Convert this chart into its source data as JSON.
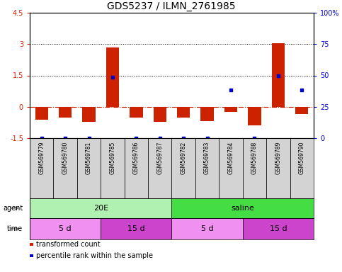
{
  "title": "GDS5237 / ILMN_2761985",
  "samples": [
    "GSM569779",
    "GSM569780",
    "GSM569781",
    "GSM569785",
    "GSM569786",
    "GSM569787",
    "GSM569782",
    "GSM569783",
    "GSM569784",
    "GSM569788",
    "GSM569789",
    "GSM569790"
  ],
  "bar_values": [
    -0.62,
    -0.5,
    -0.72,
    2.85,
    -0.5,
    -0.72,
    -0.5,
    -0.7,
    -0.25,
    -0.9,
    3.05,
    -0.35
  ],
  "percentile_values": [
    -1.5,
    -1.5,
    -1.5,
    1.4,
    -1.5,
    -1.5,
    -1.5,
    -1.5,
    0.8,
    -1.5,
    1.5,
    0.8
  ],
  "bar_color": "#cc2200",
  "dot_color": "#0000cc",
  "ylim": [
    -1.5,
    4.5
  ],
  "yticks_left": [
    -1.5,
    0,
    1.5,
    3.0,
    4.5
  ],
  "yticks_right": [
    0,
    25,
    50,
    75,
    100
  ],
  "hline_y": 0,
  "dotted_lines": [
    1.5,
    3.0
  ],
  "agent_groups": [
    {
      "label": "20E",
      "start": 0,
      "end": 6,
      "color": "#b0f0b0"
    },
    {
      "label": "saline",
      "start": 6,
      "end": 12,
      "color": "#44dd44"
    }
  ],
  "time_groups": [
    {
      "label": "5 d",
      "start": 0,
      "end": 3,
      "color": "#f090f0"
    },
    {
      "label": "15 d",
      "start": 3,
      "end": 6,
      "color": "#cc44cc"
    },
    {
      "label": "5 d",
      "start": 6,
      "end": 9,
      "color": "#f090f0"
    },
    {
      "label": "15 d",
      "start": 9,
      "end": 12,
      "color": "#cc44cc"
    }
  ],
  "legend_items": [
    {
      "label": "transformed count",
      "color": "#cc2200"
    },
    {
      "label": "percentile rank within the sample",
      "color": "#0000cc"
    }
  ],
  "agent_label": "agent",
  "time_label": "time",
  "title_fontsize": 10,
  "tick_fontsize": 7,
  "legend_fontsize": 7,
  "sample_fontsize": 5.5,
  "group_fontsize": 8,
  "background_color": "#ffffff",
  "bar_width": 0.55,
  "sample_cell_color": "#d3d3d3"
}
